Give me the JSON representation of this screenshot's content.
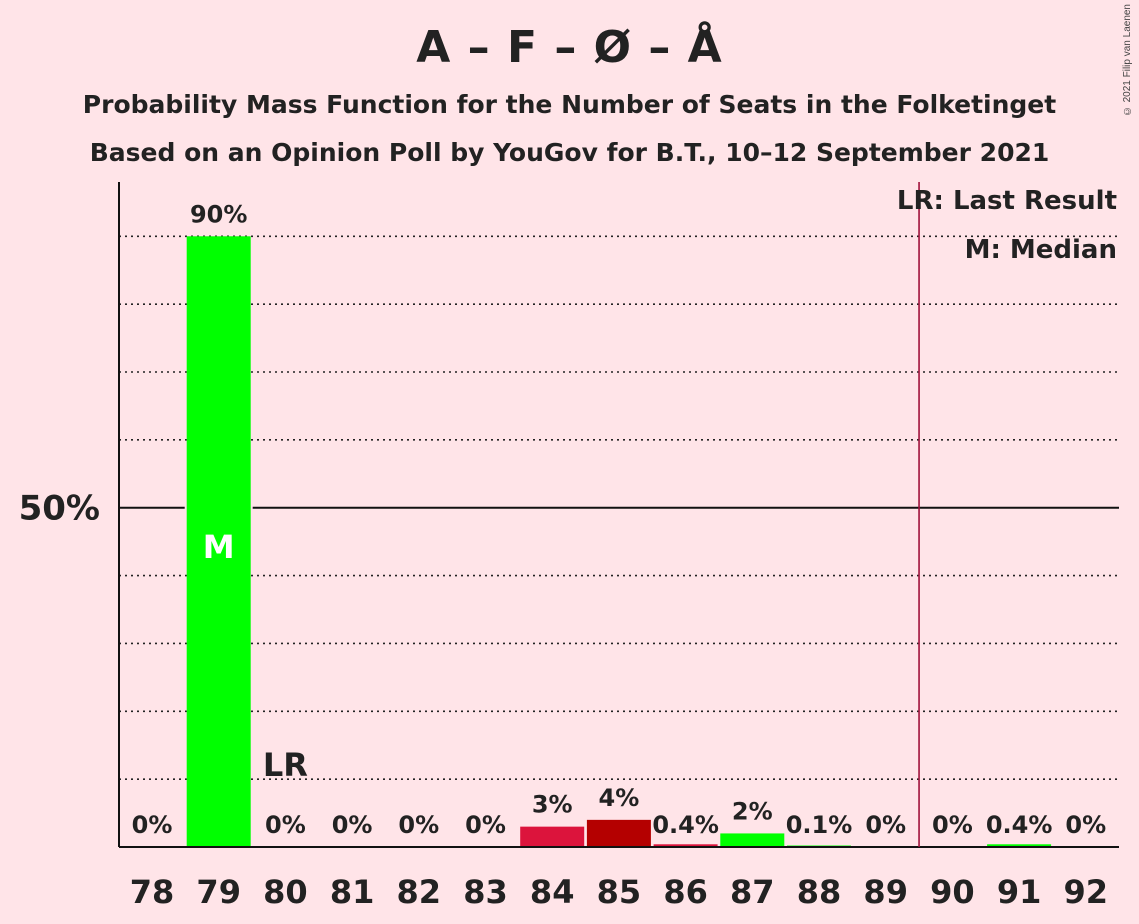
{
  "title": "A – F – Ø – Å",
  "subtitle1": "Probability Mass Function for the Number of Seats in the Folketinget",
  "subtitle2": "Based on an Opinion Poll by YouGov for B.T., 10–12 September 2021",
  "copyright": "© 2021 Filip van Laenen",
  "legend": {
    "lr": "LR: Last Result",
    "m": "M: Median"
  },
  "colors": {
    "background": "#FFE4E8",
    "green": "#00FF00",
    "red": "#DC143C",
    "darkred": "#B40000",
    "majority_line": "#A0103A"
  },
  "chart_data": {
    "type": "bar",
    "categories": [
      "78",
      "79",
      "80",
      "81",
      "82",
      "83",
      "84",
      "85",
      "86",
      "87",
      "88",
      "89",
      "90",
      "91",
      "92"
    ],
    "values": [
      0,
      90,
      0,
      0,
      0,
      0,
      3,
      4,
      0.4,
      2,
      0.1,
      0,
      0,
      0.4,
      0
    ],
    "data_labels": [
      "0%",
      "90%",
      "0%",
      "0%",
      "0%",
      "0%",
      "3%",
      "4%",
      "0.4%",
      "2%",
      "0.1%",
      "0%",
      "0%",
      "0.4%",
      "0%"
    ],
    "bar_colors": [
      "#00FF00",
      "#00FF00",
      "#00FF00",
      "#00FF00",
      "#00FF00",
      "#00FF00",
      "#DC143C",
      "#B40000",
      "#DC143C",
      "#00FF00",
      "#00FF00",
      "#00FF00",
      "#00FF00",
      "#00FF00",
      "#00FF00"
    ],
    "ylim": [
      0,
      98
    ],
    "y_tick_label": "50%",
    "y_tick_value": 50,
    "grid_values": [
      10,
      20,
      30,
      40,
      60,
      70,
      80,
      90
    ],
    "last_result_seat": "80",
    "last_result_label": "LR",
    "median_seat": "79",
    "median_label": "M",
    "majority_line_between": [
      "89",
      "90"
    ],
    "grid": true,
    "legend_position": "top-right"
  }
}
